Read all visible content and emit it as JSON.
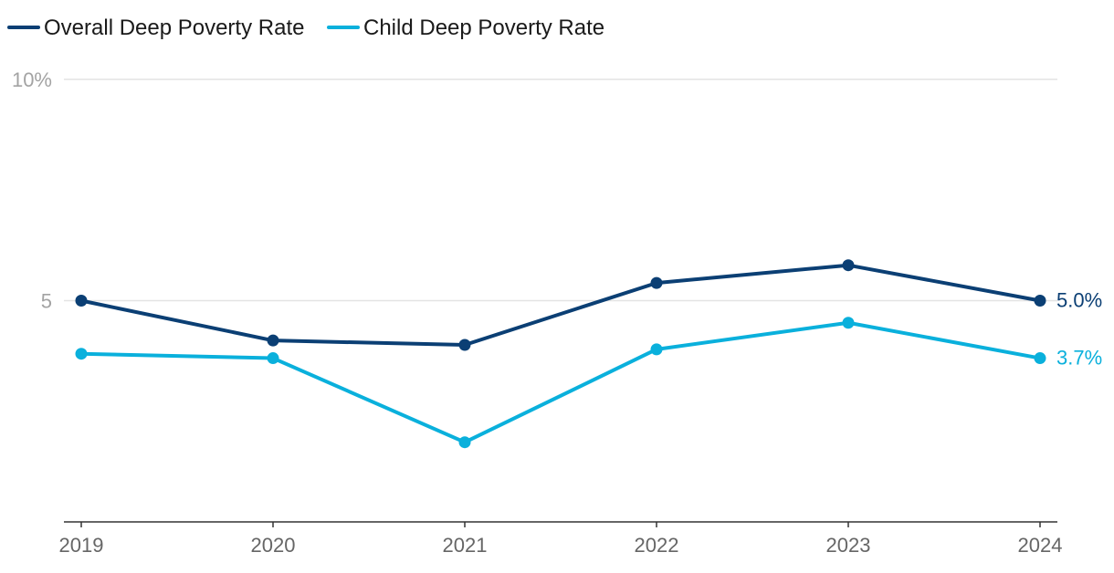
{
  "chart_data": {
    "type": "line",
    "title": "",
    "xlabel": "",
    "ylabel": "",
    "ylim": [
      0,
      10
    ],
    "y_ticks": [
      {
        "value": 10,
        "label": "10%"
      },
      {
        "value": 5,
        "label": "5"
      }
    ],
    "categories": [
      "2019",
      "2020",
      "2021",
      "2022",
      "2023",
      "2024"
    ],
    "series": [
      {
        "name": "Overall Deep Poverty Rate",
        "color": "#0b3f74",
        "values": [
          5.0,
          4.1,
          4.0,
          5.4,
          5.8,
          5.0
        ],
        "end_label": "5.0%"
      },
      {
        "name": "Child Deep Poverty Rate",
        "color": "#0ab0dc",
        "values": [
          3.8,
          3.7,
          1.8,
          3.9,
          4.5,
          3.7
        ],
        "end_label": "3.7%"
      }
    ],
    "grid": true,
    "legend": "top-left"
  }
}
